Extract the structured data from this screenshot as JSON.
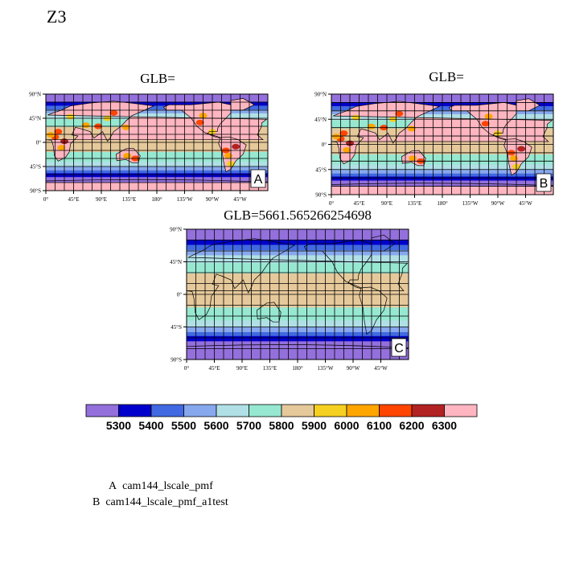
{
  "page": {
    "title": "Z3"
  },
  "panels": [
    {
      "id": "A",
      "title": "GLB=",
      "label": "A",
      "variant": "model"
    },
    {
      "id": "B",
      "title": "GLB=",
      "label": "B",
      "variant": "model"
    },
    {
      "id": "C",
      "title": "GLB=5661.565266254698",
      "label": "C",
      "variant": "obs"
    }
  ],
  "axes": {
    "lat_ticks": [
      "90°N",
      "45°N",
      "0°",
      "45°S",
      "90°S"
    ],
    "lon_ticks": [
      "0°",
      "45°E",
      "90°E",
      "135°E",
      "180°",
      "135°W",
      "90°W",
      "45°W"
    ]
  },
  "colorbar": {
    "levels": [
      "5300",
      "5400",
      "5500",
      "5600",
      "5700",
      "5800",
      "5900",
      "6000",
      "6100",
      "6200",
      "6300"
    ],
    "colors": [
      "#9370db",
      "#0000cd",
      "#4169e1",
      "#87a8ec",
      "#b0e0e6",
      "#97e8d1",
      "#e6c99b",
      "#f5d020",
      "#ffa500",
      "#ff4500",
      "#b22222",
      "#ffb6c1"
    ]
  },
  "legend": {
    "cases": [
      {
        "key": "A",
        "name": "cam144_lscale_pmf"
      },
      {
        "key": "B",
        "name": "cam144_lscale_pmf_a1test"
      }
    ]
  }
}
